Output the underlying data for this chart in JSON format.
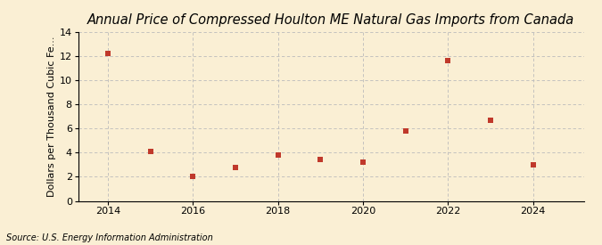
{
  "title": "Annual Price of Compressed Houlton ME Natural Gas Imports from Canada",
  "ylabel": "Dollars per Thousand Cubic Fe...",
  "source": "Source: U.S. Energy Information Administration",
  "x": [
    2014,
    2015,
    2016,
    2017,
    2018,
    2019,
    2020,
    2021,
    2022,
    2023,
    2024
  ],
  "y": [
    12.2,
    4.1,
    2.0,
    2.8,
    3.8,
    3.4,
    3.2,
    5.8,
    11.6,
    6.7,
    3.0
  ],
  "marker_color": "#c0392b",
  "marker": "s",
  "marker_size": 4,
  "xlim": [
    2013.3,
    2025.2
  ],
  "ylim": [
    0,
    14
  ],
  "yticks": [
    0,
    2,
    4,
    6,
    8,
    10,
    12,
    14
  ],
  "xticks": [
    2014,
    2016,
    2018,
    2020,
    2022,
    2024
  ],
  "background_color": "#faefd4",
  "grid_color": "#bbbbbb",
  "title_fontsize": 10.5,
  "label_fontsize": 8,
  "tick_fontsize": 8,
  "source_fontsize": 7
}
